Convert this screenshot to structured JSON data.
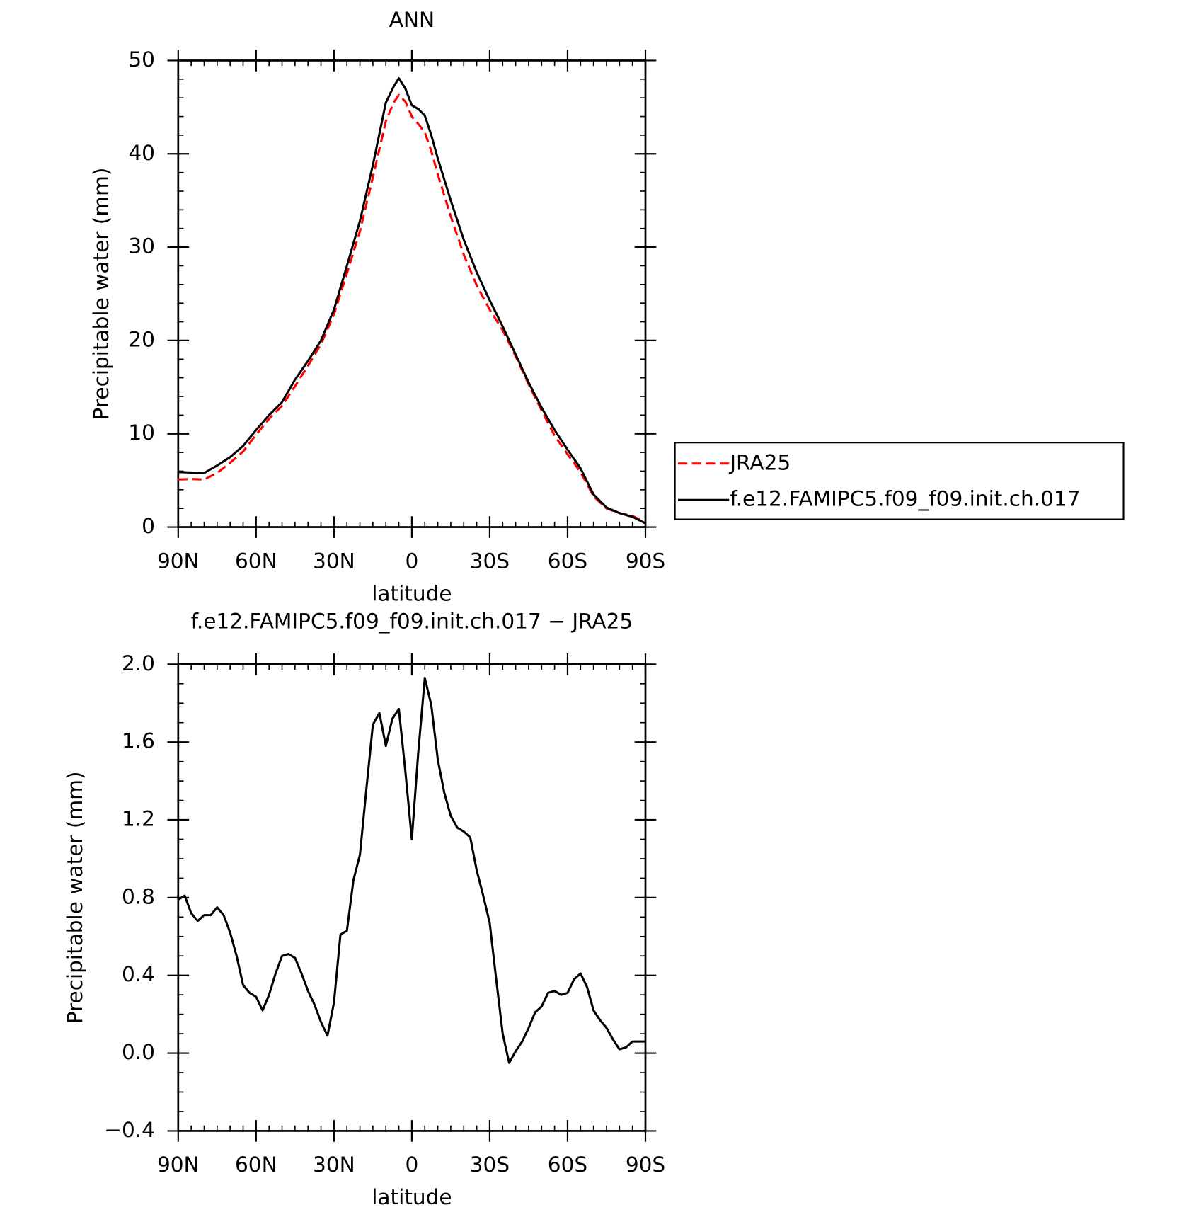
{
  "chart_data": [
    {
      "type": "line",
      "title": "ANN",
      "xlabel": "latitude",
      "ylabel": "Precipitable water (mm)",
      "x": [
        90,
        85,
        80,
        75,
        70,
        65,
        60,
        55,
        50,
        45,
        40,
        35,
        30,
        25,
        20,
        15,
        10,
        7,
        5,
        2.5,
        0,
        -2.5,
        -5,
        -7.5,
        -10,
        -15,
        -20,
        -25,
        -30,
        -35,
        -40,
        -45,
        -50,
        -55,
        -60,
        -65,
        -70,
        -75,
        -80,
        -85,
        -90
      ],
      "series": [
        {
          "name": "JRA25",
          "color": "#ff0000",
          "linestyle": "dashed",
          "values": [
            5.1,
            5.15,
            5.1,
            5.8,
            6.9,
            8.1,
            9.9,
            11.6,
            13.0,
            15.1,
            17.3,
            19.6,
            22.8,
            27.2,
            31.7,
            37.5,
            43.5,
            45.5,
            46.3,
            45.6,
            44.0,
            43.2,
            42.3,
            40.3,
            37.8,
            33.3,
            29.2,
            25.9,
            23.3,
            21.1,
            18.3,
            15.3,
            12.5,
            9.8,
            7.8,
            5.9,
            3.3,
            2.0,
            1.5,
            1.2,
            0.5
          ]
        },
        {
          "name": "f.e12.FAMIPC5.f09_f09.init.ch.017",
          "color": "#000000",
          "linestyle": "solid",
          "values": [
            5.9,
            5.85,
            5.8,
            6.6,
            7.5,
            8.7,
            10.4,
            12.0,
            13.4,
            15.8,
            17.8,
            20.0,
            23.3,
            28.0,
            32.8,
            38.8,
            45.5,
            47.2,
            48.1,
            47.0,
            45.2,
            44.8,
            44.1,
            42.0,
            39.5,
            35.0,
            30.8,
            27.3,
            24.3,
            21.5,
            18.5,
            15.5,
            12.8,
            10.4,
            8.3,
            6.3,
            3.5,
            2.1,
            1.5,
            1.1,
            0.4
          ]
        }
      ],
      "xlim": [
        90,
        -90
      ],
      "xticks": [
        {
          "value": 90,
          "label": "90N"
        },
        {
          "value": 60,
          "label": "60N"
        },
        {
          "value": 30,
          "label": "30N"
        },
        0,
        {
          "value": -30,
          "label": "30S"
        },
        {
          "value": -60,
          "label": "60S"
        },
        {
          "value": -90,
          "label": "90S"
        }
      ],
      "ylim": [
        0,
        50
      ],
      "yticks": [
        0,
        10,
        20,
        30,
        40,
        50
      ],
      "legend": "right"
    },
    {
      "type": "line",
      "title": "f.e12.FAMIPC5.f09_f09.init.ch.017 − JRA25",
      "xlabel": "latitude",
      "ylabel": "Precipitable water (mm)",
      "x": [
        90,
        87.5,
        85,
        82.5,
        80,
        77.5,
        75,
        72.5,
        70,
        67.5,
        65,
        62.5,
        60,
        57.5,
        55,
        52.5,
        50,
        47.5,
        45,
        42.5,
        40,
        37.5,
        35,
        32.5,
        30,
        27.5,
        25,
        22.5,
        20,
        17.5,
        15,
        12.5,
        10,
        7.5,
        5,
        2.5,
        0,
        -2.5,
        -5,
        -7.5,
        -10,
        -12.5,
        -15,
        -17.5,
        -20,
        -22.5,
        -25,
        -27.5,
        -30,
        -32.5,
        -35,
        -37.5,
        -40,
        -42.5,
        -45,
        -47.5,
        -50,
        -52.5,
        -55,
        -57.5,
        -60,
        -62.5,
        -65,
        -67.5,
        -70,
        -72.5,
        -75,
        -77.5,
        -80,
        -82.5,
        -85,
        -87.5,
        -90
      ],
      "series": [
        {
          "name": "f.e12.FAMIPC5.f09_f09.init.ch.017 − JRA25",
          "color": "#000000",
          "linestyle": "solid",
          "values": [
            0.79,
            0.81,
            0.72,
            0.68,
            0.71,
            0.71,
            0.75,
            0.71,
            0.62,
            0.5,
            0.35,
            0.31,
            0.29,
            0.22,
            0.3,
            0.41,
            0.5,
            0.51,
            0.49,
            0.41,
            0.32,
            0.25,
            0.16,
            0.09,
            0.26,
            0.61,
            0.63,
            0.89,
            1.02,
            1.36,
            1.69,
            1.75,
            1.58,
            1.72,
            1.77,
            1.45,
            1.1,
            1.55,
            1.93,
            1.79,
            1.51,
            1.34,
            1.22,
            1.16,
            1.14,
            1.11,
            0.94,
            0.81,
            0.67,
            0.38,
            0.1,
            -0.05,
            0.01,
            0.06,
            0.13,
            0.21,
            0.24,
            0.31,
            0.32,
            0.3,
            0.31,
            0.38,
            0.41,
            0.34,
            0.22,
            0.17,
            0.13,
            0.07,
            0.02,
            0.03,
            0.06,
            0.06,
            0.06
          ]
        }
      ],
      "xlim": [
        90,
        -90
      ],
      "xticks": [
        {
          "value": 90,
          "label": "90N"
        },
        {
          "value": 60,
          "label": "60N"
        },
        {
          "value": 30,
          "label": "30N"
        },
        0,
        {
          "value": -30,
          "label": "30S"
        },
        {
          "value": -60,
          "label": "60S"
        },
        {
          "value": -90,
          "label": "90S"
        }
      ],
      "ylim": [
        -0.4,
        2.0
      ],
      "yticks": [
        {
          "value": -0.4,
          "label": "−0.4"
        },
        {
          "value": 0,
          "label": "0.0"
        },
        0.4,
        0.8,
        1.2,
        1.6,
        {
          "value": 2.0,
          "label": "2.0"
        }
      ]
    }
  ]
}
